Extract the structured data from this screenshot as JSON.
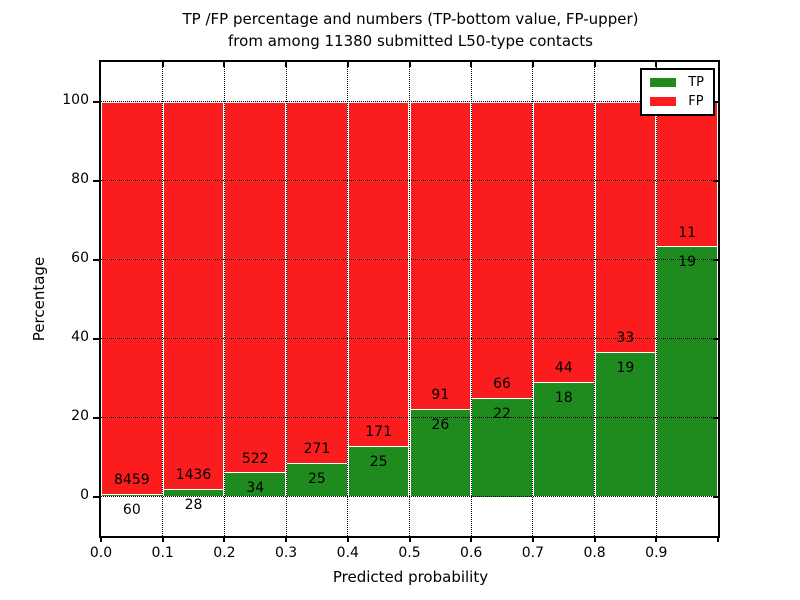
{
  "title": {
    "line1": "TP /FP percentage and numbers (TP-bottom value, FP-upper)",
    "line2": "from among 11380 submitted L50-type contacts"
  },
  "axes": {
    "xlabel": "Predicted probability",
    "ylabel": "Percentage",
    "x_tick_labels": [
      "0.0",
      "0.1",
      "0.2",
      "0.3",
      "0.4",
      "0.5",
      "0.6",
      "0.7",
      "0.8",
      "0.9"
    ],
    "y_tick_labels": [
      "0",
      "20",
      "40",
      "60",
      "80",
      "100"
    ]
  },
  "legend": {
    "items": [
      {
        "label": "TP",
        "color": "#1f8b1f"
      },
      {
        "label": "FP",
        "color": "#fb1d1d"
      }
    ]
  },
  "chart_data": {
    "type": "bar",
    "stacked": true,
    "normalized_to_percent": 100,
    "title": "TP /FP percentage and numbers (TP-bottom value, FP-upper) from among 11380 submitted L50-type contacts",
    "xlabel": "Predicted probability",
    "ylabel": "Percentage",
    "total_contacts": 11380,
    "categories": [
      "0.0",
      "0.1",
      "0.2",
      "0.3",
      "0.4",
      "0.5",
      "0.6",
      "0.7",
      "0.8",
      "0.9"
    ],
    "bin_width": 0.1,
    "xlim": [
      0.0,
      1.0
    ],
    "ylim": [
      -10,
      110
    ],
    "y_tick_values": [
      0,
      20,
      40,
      60,
      80,
      100
    ],
    "grid": true,
    "legend_position": "upper right",
    "series": [
      {
        "name": "TP",
        "color": "#1f8b1f",
        "counts": [
          60,
          28,
          34,
          25,
          25,
          26,
          22,
          18,
          19,
          19
        ]
      },
      {
        "name": "FP",
        "color": "#fb1d1d",
        "counts": [
          8459,
          1436,
          522,
          271,
          171,
          91,
          66,
          44,
          33,
          11
        ]
      }
    ],
    "tp_percent_of_bin": [
      0.7,
      1.91,
      6.12,
      8.45,
      12.76,
      22.22,
      25.0,
      29.03,
      36.54,
      63.33
    ]
  }
}
